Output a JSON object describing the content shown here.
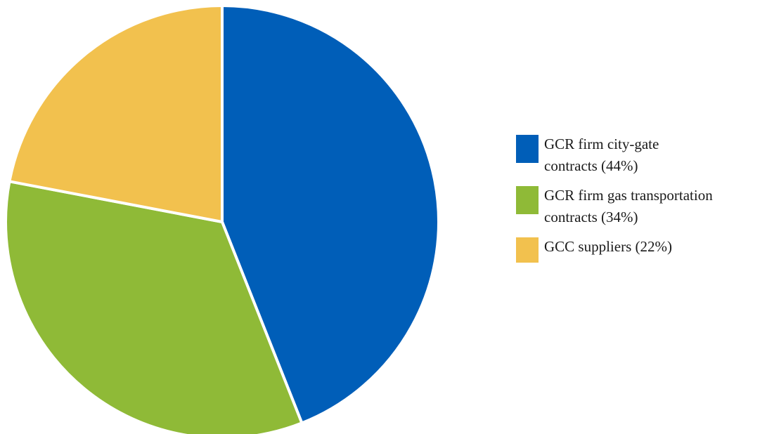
{
  "chart_data": {
    "type": "pie",
    "title": "",
    "start_angle_deg": 0,
    "direction": "clockwise",
    "slices": [
      {
        "label": "GCR firm city-gate\ncontracts (44%)",
        "value": 44,
        "color": "#005eb8"
      },
      {
        "label": "GCR firm gas transportation\ncontracts (34%)",
        "value": 34,
        "color": "#8fba37"
      },
      {
        "label": "GCC suppliers (22%)",
        "value": 22,
        "color": "#f2c14e"
      }
    ],
    "legend": "right"
  }
}
